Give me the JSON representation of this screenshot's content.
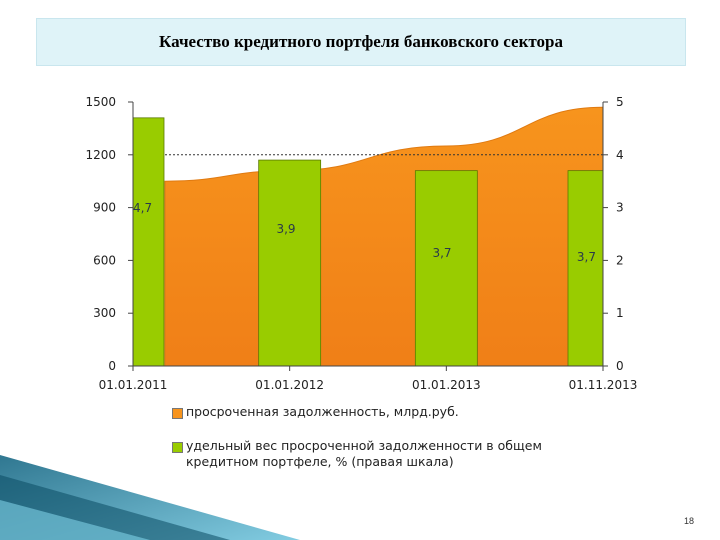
{
  "slide": {
    "title": "Качество кредитного портфеля банковского сектора",
    "page_number": "18"
  },
  "colors": {
    "area_fill": "#f7941d",
    "bar_fill": "#99cc00",
    "title_bg": "#dff3f8"
  },
  "chart_data": {
    "type": "bar",
    "categories": [
      "01.01.2011",
      "01.01.2012",
      "01.01.2013",
      "01.11.2013"
    ],
    "series": [
      {
        "name": "просроченная задолженность, млрд.руб.",
        "type": "area",
        "axis": "left",
        "x": [
          "01.01.2011",
          "01.01.2012",
          "01.01.2013",
          "01.11.2013"
        ],
        "values": [
          1050,
          1110,
          1250,
          1470
        ]
      },
      {
        "name": "удельный вес просроченной задолженности в общем кредитном портфеле, % (правая шкала)",
        "type": "bar",
        "axis": "right",
        "values": [
          4.7,
          3.9,
          3.7,
          3.7
        ],
        "labels": [
          "4,7",
          "3,9",
          "3,7",
          "3,7"
        ]
      }
    ],
    "y_left": {
      "range": [
        0,
        1500
      ],
      "ticks": [
        "0",
        "300",
        "600",
        "900",
        "1200",
        "1500"
      ]
    },
    "y_right": {
      "range": [
        0,
        5
      ],
      "ticks": [
        "0",
        "1",
        "2",
        "3",
        "4",
        "5"
      ]
    },
    "reference_line": {
      "value": 1200,
      "axis": "left",
      "style": "dashed"
    },
    "legend_position": "bottom",
    "grid": false
  }
}
